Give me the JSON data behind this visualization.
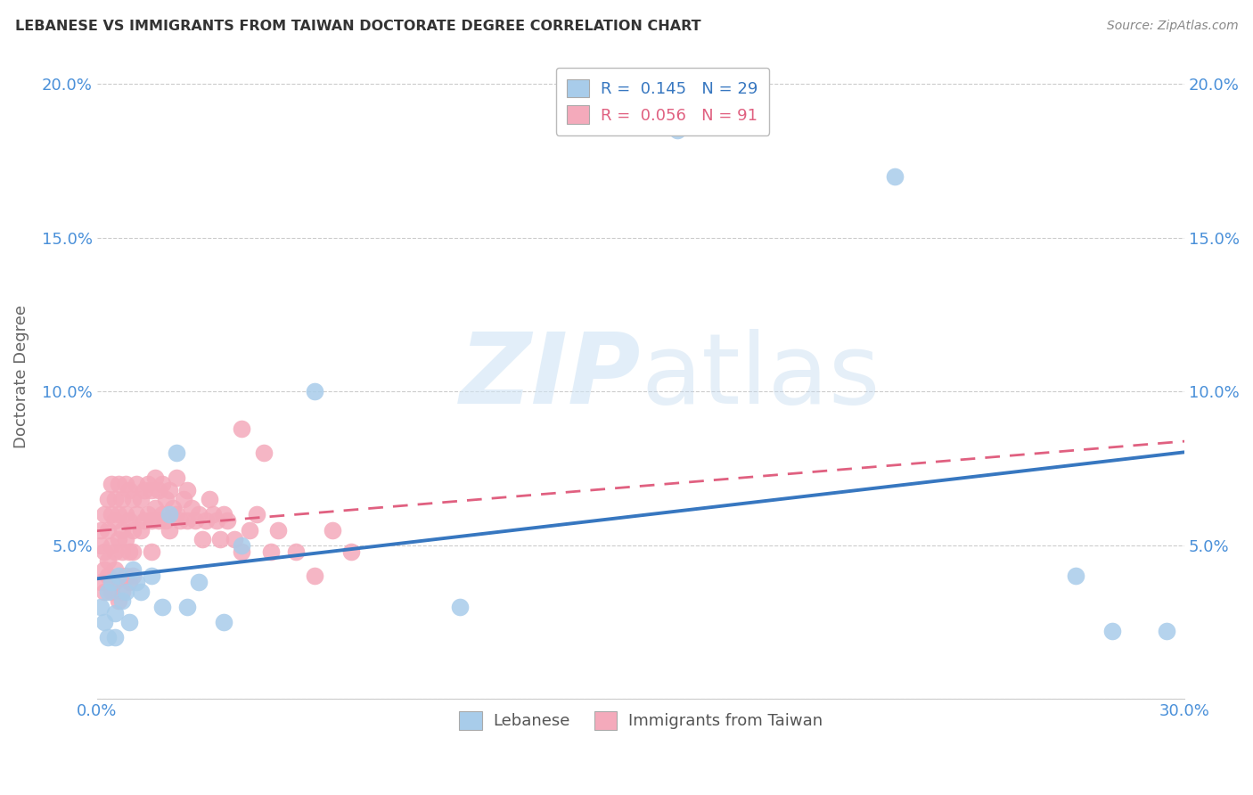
{
  "title": "LEBANESE VS IMMIGRANTS FROM TAIWAN DOCTORATE DEGREE CORRELATION CHART",
  "source": "Source: ZipAtlas.com",
  "ylabel": "Doctorate Degree",
  "xlim": [
    0.0,
    0.3
  ],
  "ylim": [
    0.0,
    0.21
  ],
  "xticks": [
    0.0,
    0.05,
    0.1,
    0.15,
    0.2,
    0.25,
    0.3
  ],
  "yticks": [
    0.0,
    0.05,
    0.1,
    0.15,
    0.2
  ],
  "ytick_labels_left": [
    "",
    "5.0%",
    "10.0%",
    "15.0%",
    "20.0%"
  ],
  "ytick_labels_right": [
    "",
    "5.0%",
    "10.0%",
    "15.0%",
    "20.0%"
  ],
  "xtick_labels": [
    "0.0%",
    "",
    "",
    "",
    "",
    "",
    "30.0%"
  ],
  "blue_color": "#A8CCEA",
  "pink_color": "#F4AABB",
  "blue_line_color": "#3777C0",
  "pink_line_color": "#E06080",
  "lebanese_x": [
    0.001,
    0.002,
    0.003,
    0.003,
    0.004,
    0.005,
    0.005,
    0.006,
    0.007,
    0.008,
    0.009,
    0.01,
    0.011,
    0.012,
    0.015,
    0.018,
    0.02,
    0.022,
    0.025,
    0.028,
    0.035,
    0.04,
    0.06,
    0.1,
    0.16,
    0.22,
    0.27,
    0.28,
    0.295
  ],
  "lebanese_y": [
    0.03,
    0.025,
    0.035,
    0.02,
    0.038,
    0.028,
    0.02,
    0.04,
    0.032,
    0.035,
    0.025,
    0.042,
    0.038,
    0.035,
    0.04,
    0.03,
    0.06,
    0.08,
    0.03,
    0.038,
    0.025,
    0.05,
    0.1,
    0.03,
    0.185,
    0.17,
    0.04,
    0.022,
    0.022
  ],
  "taiwan_x": [
    0.001,
    0.001,
    0.002,
    0.002,
    0.002,
    0.003,
    0.003,
    0.003,
    0.004,
    0.004,
    0.004,
    0.005,
    0.005,
    0.005,
    0.005,
    0.006,
    0.006,
    0.006,
    0.007,
    0.007,
    0.007,
    0.008,
    0.008,
    0.008,
    0.009,
    0.009,
    0.009,
    0.01,
    0.01,
    0.01,
    0.011,
    0.011,
    0.012,
    0.012,
    0.013,
    0.013,
    0.014,
    0.014,
    0.015,
    0.015,
    0.015,
    0.016,
    0.016,
    0.017,
    0.017,
    0.018,
    0.018,
    0.019,
    0.019,
    0.02,
    0.02,
    0.021,
    0.022,
    0.022,
    0.023,
    0.024,
    0.025,
    0.025,
    0.026,
    0.027,
    0.028,
    0.029,
    0.03,
    0.031,
    0.032,
    0.033,
    0.034,
    0.035,
    0.036,
    0.038,
    0.04,
    0.042,
    0.044,
    0.046,
    0.048,
    0.05,
    0.055,
    0.06,
    0.065,
    0.07,
    0.001,
    0.002,
    0.003,
    0.004,
    0.005,
    0.006,
    0.007,
    0.008,
    0.009,
    0.01,
    0.04
  ],
  "taiwan_y": [
    0.05,
    0.055,
    0.048,
    0.06,
    0.042,
    0.055,
    0.065,
    0.045,
    0.05,
    0.06,
    0.07,
    0.048,
    0.065,
    0.058,
    0.042,
    0.06,
    0.07,
    0.052,
    0.055,
    0.065,
    0.048,
    0.06,
    0.07,
    0.052,
    0.058,
    0.068,
    0.048,
    0.055,
    0.065,
    0.048,
    0.06,
    0.07,
    0.055,
    0.065,
    0.058,
    0.068,
    0.06,
    0.07,
    0.058,
    0.068,
    0.048,
    0.062,
    0.072,
    0.058,
    0.068,
    0.06,
    0.07,
    0.058,
    0.065,
    0.055,
    0.068,
    0.062,
    0.06,
    0.072,
    0.058,
    0.065,
    0.058,
    0.068,
    0.062,
    0.058,
    0.06,
    0.052,
    0.058,
    0.065,
    0.06,
    0.058,
    0.052,
    0.06,
    0.058,
    0.052,
    0.048,
    0.055,
    0.06,
    0.08,
    0.048,
    0.055,
    0.048,
    0.04,
    0.055,
    0.048,
    0.038,
    0.035,
    0.04,
    0.035,
    0.038,
    0.032,
    0.035,
    0.04,
    0.038,
    0.04,
    0.088
  ]
}
